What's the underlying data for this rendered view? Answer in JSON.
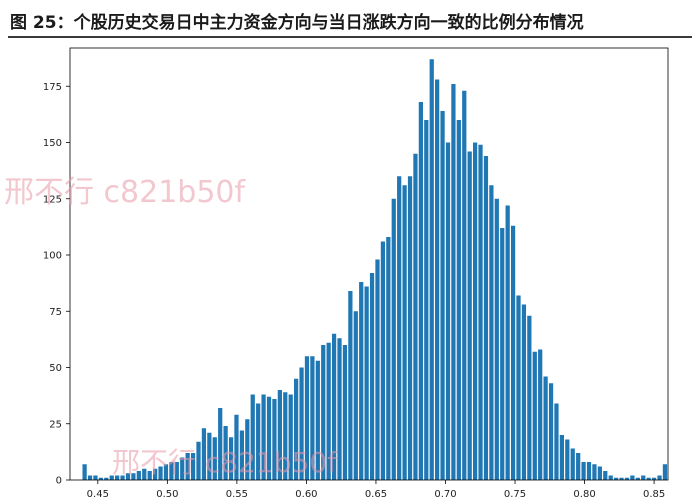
{
  "caption": "图 25：个股历史交易日中主力资金方向与当日涨跌方向一致的比例分布情况",
  "watermark": "邢不行 c821b50f",
  "colors": {
    "bar": "#1f77b4",
    "axis": "#000000",
    "watermark": "#e89aa8"
  },
  "chart_data": {
    "type": "bar",
    "title": "",
    "xlabel": "",
    "ylabel": "",
    "xlim": [
      0.43,
      0.86
    ],
    "ylim": [
      0,
      192
    ],
    "grid": false,
    "x_ticks": [
      "0.45",
      "0.50",
      "0.55",
      "0.60",
      "0.65",
      "0.70",
      "0.75",
      "0.80",
      "0.85"
    ],
    "x_tick_values": [
      0.45,
      0.5,
      0.55,
      0.6,
      0.65,
      0.7,
      0.75,
      0.8,
      0.85
    ],
    "y_ticks": [
      "0",
      "25",
      "50",
      "75",
      "100",
      "125",
      "150",
      "175"
    ],
    "y_tick_values": [
      0,
      25,
      50,
      75,
      100,
      125,
      150,
      175
    ],
    "bin_width": 0.0039,
    "bins": [
      {
        "x": 0.4405,
        "count": 7
      },
      {
        "x": 0.4444,
        "count": 2
      },
      {
        "x": 0.4483,
        "count": 2
      },
      {
        "x": 0.4522,
        "count": 1
      },
      {
        "x": 0.4561,
        "count": 1
      },
      {
        "x": 0.46,
        "count": 2
      },
      {
        "x": 0.4639,
        "count": 2
      },
      {
        "x": 0.4678,
        "count": 2
      },
      {
        "x": 0.4717,
        "count": 3
      },
      {
        "x": 0.4756,
        "count": 3
      },
      {
        "x": 0.4795,
        "count": 4
      },
      {
        "x": 0.4834,
        "count": 5
      },
      {
        "x": 0.4873,
        "count": 4
      },
      {
        "x": 0.4912,
        "count": 5
      },
      {
        "x": 0.4951,
        "count": 6
      },
      {
        "x": 0.499,
        "count": 7
      },
      {
        "x": 0.5029,
        "count": 8
      },
      {
        "x": 0.5068,
        "count": 8
      },
      {
        "x": 0.5107,
        "count": 10
      },
      {
        "x": 0.5146,
        "count": 12
      },
      {
        "x": 0.5185,
        "count": 12
      },
      {
        "x": 0.5224,
        "count": 17
      },
      {
        "x": 0.5263,
        "count": 23
      },
      {
        "x": 0.5302,
        "count": 21
      },
      {
        "x": 0.5341,
        "count": 19
      },
      {
        "x": 0.538,
        "count": 32
      },
      {
        "x": 0.5419,
        "count": 24
      },
      {
        "x": 0.5458,
        "count": 19
      },
      {
        "x": 0.5497,
        "count": 29
      },
      {
        "x": 0.5536,
        "count": 22
      },
      {
        "x": 0.5575,
        "count": 27
      },
      {
        "x": 0.5614,
        "count": 38
      },
      {
        "x": 0.5653,
        "count": 34
      },
      {
        "x": 0.5692,
        "count": 38
      },
      {
        "x": 0.5731,
        "count": 37
      },
      {
        "x": 0.577,
        "count": 36
      },
      {
        "x": 0.5809,
        "count": 40
      },
      {
        "x": 0.5848,
        "count": 39
      },
      {
        "x": 0.5887,
        "count": 38
      },
      {
        "x": 0.5926,
        "count": 45
      },
      {
        "x": 0.5965,
        "count": 50
      },
      {
        "x": 0.6004,
        "count": 55
      },
      {
        "x": 0.6043,
        "count": 55
      },
      {
        "x": 0.6082,
        "count": 53
      },
      {
        "x": 0.6121,
        "count": 60
      },
      {
        "x": 0.616,
        "count": 61
      },
      {
        "x": 0.6199,
        "count": 65
      },
      {
        "x": 0.6238,
        "count": 63
      },
      {
        "x": 0.6277,
        "count": 60
      },
      {
        "x": 0.6316,
        "count": 84
      },
      {
        "x": 0.6355,
        "count": 75
      },
      {
        "x": 0.6394,
        "count": 88
      },
      {
        "x": 0.6433,
        "count": 86
      },
      {
        "x": 0.6472,
        "count": 92
      },
      {
        "x": 0.6511,
        "count": 98
      },
      {
        "x": 0.655,
        "count": 106
      },
      {
        "x": 0.6589,
        "count": 108
      },
      {
        "x": 0.6628,
        "count": 125
      },
      {
        "x": 0.6667,
        "count": 135
      },
      {
        "x": 0.6706,
        "count": 131
      },
      {
        "x": 0.6745,
        "count": 135
      },
      {
        "x": 0.6784,
        "count": 145
      },
      {
        "x": 0.6823,
        "count": 168
      },
      {
        "x": 0.6862,
        "count": 160
      },
      {
        "x": 0.6901,
        "count": 187
      },
      {
        "x": 0.694,
        "count": 178
      },
      {
        "x": 0.6979,
        "count": 164
      },
      {
        "x": 0.7018,
        "count": 150
      },
      {
        "x": 0.7057,
        "count": 176
      },
      {
        "x": 0.7096,
        "count": 160
      },
      {
        "x": 0.7135,
        "count": 173
      },
      {
        "x": 0.7174,
        "count": 146
      },
      {
        "x": 0.7213,
        "count": 150
      },
      {
        "x": 0.7252,
        "count": 149
      },
      {
        "x": 0.7291,
        "count": 144
      },
      {
        "x": 0.733,
        "count": 131
      },
      {
        "x": 0.7369,
        "count": 125
      },
      {
        "x": 0.7408,
        "count": 112
      },
      {
        "x": 0.7447,
        "count": 122
      },
      {
        "x": 0.7486,
        "count": 113
      },
      {
        "x": 0.7525,
        "count": 82
      },
      {
        "x": 0.7564,
        "count": 78
      },
      {
        "x": 0.7603,
        "count": 73
      },
      {
        "x": 0.7642,
        "count": 57
      },
      {
        "x": 0.7681,
        "count": 58
      },
      {
        "x": 0.772,
        "count": 46
      },
      {
        "x": 0.7759,
        "count": 43
      },
      {
        "x": 0.7798,
        "count": 34
      },
      {
        "x": 0.7837,
        "count": 20
      },
      {
        "x": 0.7876,
        "count": 18
      },
      {
        "x": 0.7915,
        "count": 14
      },
      {
        "x": 0.7954,
        "count": 12
      },
      {
        "x": 0.7993,
        "count": 8
      },
      {
        "x": 0.8032,
        "count": 8
      },
      {
        "x": 0.8071,
        "count": 7
      },
      {
        "x": 0.811,
        "count": 6
      },
      {
        "x": 0.8149,
        "count": 4
      },
      {
        "x": 0.8188,
        "count": 2
      },
      {
        "x": 0.8227,
        "count": 1
      },
      {
        "x": 0.8266,
        "count": 1
      },
      {
        "x": 0.8305,
        "count": 1
      },
      {
        "x": 0.8344,
        "count": 2
      },
      {
        "x": 0.8383,
        "count": 1
      },
      {
        "x": 0.8422,
        "count": 2
      },
      {
        "x": 0.8461,
        "count": 1
      },
      {
        "x": 0.85,
        "count": 1
      },
      {
        "x": 0.8539,
        "count": 2
      },
      {
        "x": 0.8578,
        "count": 7
      }
    ]
  }
}
